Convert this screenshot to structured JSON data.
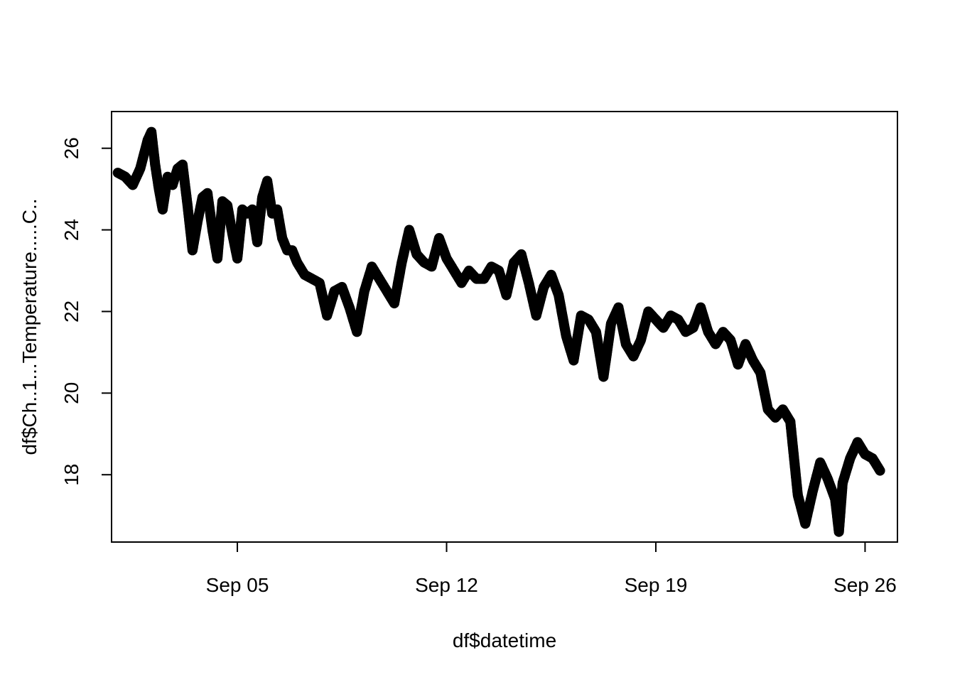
{
  "chart_data": {
    "type": "scatter",
    "xlabel": "df$datetime",
    "ylabel": "df$Ch..1...Temperature.....C..",
    "xlim": [
      "2025-08-31T19:00",
      "2025-09-27T02:00"
    ],
    "ylim": [
      16.35,
      26.9
    ],
    "x_ticks": [
      {
        "value": "2025-09-05T00:00",
        "label": "Sep 05"
      },
      {
        "value": "2025-09-12T00:00",
        "label": "Sep 12"
      },
      {
        "value": "2025-09-19T00:00",
        "label": "Sep 19"
      },
      {
        "value": "2025-09-26T00:00",
        "label": "Sep 26"
      }
    ],
    "y_ticks": [
      {
        "value": 18,
        "label": "18"
      },
      {
        "value": 20,
        "label": "20"
      },
      {
        "value": 22,
        "label": "22"
      },
      {
        "value": 24,
        "label": "24"
      },
      {
        "value": 26,
        "label": "26"
      }
    ],
    "grid": false,
    "marker": "open-circle",
    "series": [
      {
        "color": "#000000",
        "points": [
          [
            "2025-09-01T00:00",
            25.4
          ],
          [
            "2025-09-01T06:00",
            25.3
          ],
          [
            "2025-09-01T12:00",
            25.1
          ],
          [
            "2025-09-01T18:00",
            25.5
          ],
          [
            "2025-09-02T00:00",
            26.2
          ],
          [
            "2025-09-02T03:00",
            26.4
          ],
          [
            "2025-09-02T06:00",
            25.6
          ],
          [
            "2025-09-02T09:00",
            25.0
          ],
          [
            "2025-09-02T12:00",
            24.5
          ],
          [
            "2025-09-02T16:00",
            25.3
          ],
          [
            "2025-09-02T20:00",
            25.1
          ],
          [
            "2025-09-03T00:00",
            25.5
          ],
          [
            "2025-09-03T04:00",
            25.6
          ],
          [
            "2025-09-03T08:00",
            24.6
          ],
          [
            "2025-09-03T12:00",
            23.5
          ],
          [
            "2025-09-03T16:00",
            24.2
          ],
          [
            "2025-09-03T20:00",
            24.8
          ],
          [
            "2025-09-04T00:00",
            24.9
          ],
          [
            "2025-09-04T04:00",
            24.0
          ],
          [
            "2025-09-04T08:00",
            23.3
          ],
          [
            "2025-09-04T12:00",
            24.7
          ],
          [
            "2025-09-04T16:00",
            24.6
          ],
          [
            "2025-09-04T20:00",
            23.9
          ],
          [
            "2025-09-05T00:00",
            23.3
          ],
          [
            "2025-09-05T04:00",
            24.5
          ],
          [
            "2025-09-05T08:00",
            24.4
          ],
          [
            "2025-09-05T12:00",
            24.5
          ],
          [
            "2025-09-05T16:00",
            23.7
          ],
          [
            "2025-09-05T20:00",
            24.8
          ],
          [
            "2025-09-06T00:00",
            25.2
          ],
          [
            "2025-09-06T04:00",
            24.4
          ],
          [
            "2025-09-06T08:00",
            24.5
          ],
          [
            "2025-09-06T12:00",
            23.8
          ],
          [
            "2025-09-06T16:00",
            23.5
          ],
          [
            "2025-09-06T20:00",
            23.5
          ],
          [
            "2025-09-07T00:00",
            23.2
          ],
          [
            "2025-09-07T06:00",
            22.9
          ],
          [
            "2025-09-07T12:00",
            22.8
          ],
          [
            "2025-09-07T18:00",
            22.7
          ],
          [
            "2025-09-08T00:00",
            21.9
          ],
          [
            "2025-09-08T06:00",
            22.5
          ],
          [
            "2025-09-08T12:00",
            22.6
          ],
          [
            "2025-09-08T18:00",
            22.1
          ],
          [
            "2025-09-09T00:00",
            21.5
          ],
          [
            "2025-09-09T06:00",
            22.5
          ],
          [
            "2025-09-09T12:00",
            23.1
          ],
          [
            "2025-09-09T18:00",
            22.8
          ],
          [
            "2025-09-10T00:00",
            22.5
          ],
          [
            "2025-09-10T06:00",
            22.2
          ],
          [
            "2025-09-10T12:00",
            23.2
          ],
          [
            "2025-09-10T18:00",
            24.0
          ],
          [
            "2025-09-11T00:00",
            23.4
          ],
          [
            "2025-09-11T06:00",
            23.2
          ],
          [
            "2025-09-11T12:00",
            23.1
          ],
          [
            "2025-09-11T18:00",
            23.8
          ],
          [
            "2025-09-12T00:00",
            23.3
          ],
          [
            "2025-09-12T06:00",
            23.0
          ],
          [
            "2025-09-12T12:00",
            22.7
          ],
          [
            "2025-09-12T18:00",
            23.0
          ],
          [
            "2025-09-13T00:00",
            22.8
          ],
          [
            "2025-09-13T06:00",
            22.8
          ],
          [
            "2025-09-13T12:00",
            23.1
          ],
          [
            "2025-09-13T18:00",
            23.0
          ],
          [
            "2025-09-14T00:00",
            22.4
          ],
          [
            "2025-09-14T06:00",
            23.2
          ],
          [
            "2025-09-14T12:00",
            23.4
          ],
          [
            "2025-09-14T18:00",
            22.7
          ],
          [
            "2025-09-15T00:00",
            21.9
          ],
          [
            "2025-09-15T06:00",
            22.6
          ],
          [
            "2025-09-15T12:00",
            22.9
          ],
          [
            "2025-09-15T18:00",
            22.4
          ],
          [
            "2025-09-16T00:00",
            21.4
          ],
          [
            "2025-09-16T06:00",
            20.8
          ],
          [
            "2025-09-16T12:00",
            21.9
          ],
          [
            "2025-09-16T18:00",
            21.8
          ],
          [
            "2025-09-17T00:00",
            21.5
          ],
          [
            "2025-09-17T06:00",
            20.4
          ],
          [
            "2025-09-17T12:00",
            21.7
          ],
          [
            "2025-09-17T18:00",
            22.1
          ],
          [
            "2025-09-18T00:00",
            21.2
          ],
          [
            "2025-09-18T06:00",
            20.9
          ],
          [
            "2025-09-18T12:00",
            21.3
          ],
          [
            "2025-09-18T18:00",
            22.0
          ],
          [
            "2025-09-19T00:00",
            21.8
          ],
          [
            "2025-09-19T06:00",
            21.6
          ],
          [
            "2025-09-19T12:00",
            21.9
          ],
          [
            "2025-09-19T18:00",
            21.8
          ],
          [
            "2025-09-20T00:00",
            21.5
          ],
          [
            "2025-09-20T06:00",
            21.6
          ],
          [
            "2025-09-20T12:00",
            22.1
          ],
          [
            "2025-09-20T18:00",
            21.5
          ],
          [
            "2025-09-21T00:00",
            21.2
          ],
          [
            "2025-09-21T06:00",
            21.5
          ],
          [
            "2025-09-21T12:00",
            21.3
          ],
          [
            "2025-09-21T18:00",
            20.7
          ],
          [
            "2025-09-22T00:00",
            21.2
          ],
          [
            "2025-09-22T06:00",
            20.8
          ],
          [
            "2025-09-22T12:00",
            20.5
          ],
          [
            "2025-09-22T18:00",
            19.6
          ],
          [
            "2025-09-23T00:00",
            19.4
          ],
          [
            "2025-09-23T06:00",
            19.6
          ],
          [
            "2025-09-23T12:00",
            19.3
          ],
          [
            "2025-09-23T18:00",
            17.5
          ],
          [
            "2025-09-24T00:00",
            16.8
          ],
          [
            "2025-09-24T06:00",
            17.6
          ],
          [
            "2025-09-24T12:00",
            18.3
          ],
          [
            "2025-09-24T18:00",
            17.9
          ],
          [
            "2025-09-25T00:00",
            17.4
          ],
          [
            "2025-09-25T03:00",
            16.6
          ],
          [
            "2025-09-25T06:00",
            17.8
          ],
          [
            "2025-09-25T12:00",
            18.4
          ],
          [
            "2025-09-25T18:00",
            18.8
          ],
          [
            "2025-09-26T00:00",
            18.5
          ],
          [
            "2025-09-26T06:00",
            18.4
          ],
          [
            "2025-09-26T12:00",
            18.1
          ]
        ]
      }
    ]
  }
}
